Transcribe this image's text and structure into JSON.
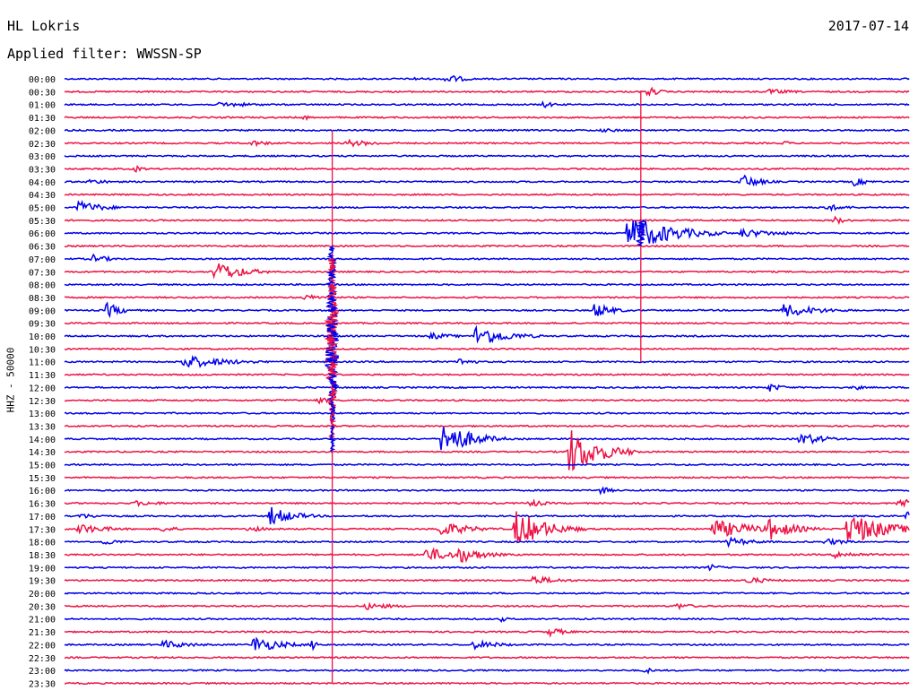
{
  "header": {
    "station": "HL Lokris",
    "date": "2017-07-14",
    "filter": "Applied filter: WWSSN-SP"
  },
  "chart_data": {
    "type": "line",
    "title": "HL Lokris",
    "ylabel": "HHZ - 50000",
    "row_labels": [
      "00:00",
      "00:30",
      "01:00",
      "01:30",
      "02:00",
      "02:30",
      "03:00",
      "03:30",
      "04:00",
      "04:30",
      "05:00",
      "05:30",
      "06:00",
      "06:30",
      "07:00",
      "07:30",
      "08:00",
      "08:30",
      "09:00",
      "09:30",
      "10:00",
      "10:30",
      "11:00",
      "11:30",
      "12:00",
      "12:30",
      "13:00",
      "13:30",
      "14:00",
      "14:30",
      "15:00",
      "15:30",
      "16:00",
      "16:30",
      "17:00",
      "17:30",
      "18:00",
      "18:30",
      "19:00",
      "19:30",
      "20:00",
      "20:30",
      "21:00",
      "21:30",
      "22:00",
      "22:30",
      "23:00",
      "23:30"
    ],
    "minutes_per_row": 30,
    "colors": {
      "even": "#0000ee",
      "odd": "#ee1144"
    },
    "events": [
      {
        "row": 0,
        "minute": 13.5,
        "amp": 6,
        "dur": 0.6
      },
      {
        "row": 0,
        "minute": 12.3,
        "amp": 2,
        "dur": 0.8
      },
      {
        "row": 1,
        "minute": 20.7,
        "amp": 6,
        "dur": 0.4
      },
      {
        "row": 1,
        "minute": 25.0,
        "amp": 3,
        "dur": 1.0
      },
      {
        "row": 2,
        "minute": 5.5,
        "amp": 3,
        "dur": 1.5
      },
      {
        "row": 2,
        "minute": 17.0,
        "amp": 4,
        "dur": 0.4
      },
      {
        "row": 3,
        "minute": 8.5,
        "amp": 3,
        "dur": 0.3
      },
      {
        "row": 4,
        "minute": 19.0,
        "amp": 2,
        "dur": 1.5
      },
      {
        "row": 5,
        "minute": 6.6,
        "amp": 4,
        "dur": 0.6
      },
      {
        "row": 5,
        "minute": 10.0,
        "amp": 4,
        "dur": 1.2
      },
      {
        "row": 5,
        "minute": 25.5,
        "amp": 3,
        "dur": 0.3
      },
      {
        "row": 7,
        "minute": 2.5,
        "amp": 4,
        "dur": 0.3
      },
      {
        "row": 8,
        "minute": 24.0,
        "amp": 9,
        "dur": 0.6
      },
      {
        "row": 8,
        "minute": 28.0,
        "amp": 5,
        "dur": 0.5
      },
      {
        "row": 8,
        "minute": 0.8,
        "amp": 3,
        "dur": 1.0
      },
      {
        "row": 10,
        "minute": 0.5,
        "amp": 8,
        "dur": 0.8
      },
      {
        "row": 10,
        "minute": 27.0,
        "amp": 4,
        "dur": 0.8
      },
      {
        "row": 11,
        "minute": 27.3,
        "amp": 5,
        "dur": 0.4
      },
      {
        "row": 12,
        "minute": 20.0,
        "amp": 22,
        "dur": 1.4
      },
      {
        "row": 12,
        "minute": 24.0,
        "amp": 5,
        "dur": 1.4
      },
      {
        "row": 14,
        "minute": 1.0,
        "amp": 5,
        "dur": 0.6
      },
      {
        "row": 15,
        "minute": 5.3,
        "amp": 13,
        "dur": 0.9
      },
      {
        "row": 17,
        "minute": 8.5,
        "amp": 3,
        "dur": 1.2
      },
      {
        "row": 18,
        "minute": 1.5,
        "amp": 9,
        "dur": 0.5
      },
      {
        "row": 18,
        "minute": 18.8,
        "amp": 9,
        "dur": 0.6
      },
      {
        "row": 18,
        "minute": 25.5,
        "amp": 8,
        "dur": 1.2
      },
      {
        "row": 20,
        "minute": 14.6,
        "amp": 13,
        "dur": 1.0
      },
      {
        "row": 20,
        "minute": 13.0,
        "amp": 4,
        "dur": 0.8
      },
      {
        "row": 22,
        "minute": 4.2,
        "amp": 8,
        "dur": 1.5
      },
      {
        "row": 22,
        "minute": 14.0,
        "amp": 5,
        "dur": 0.5
      },
      {
        "row": 24,
        "minute": 25.0,
        "amp": 5,
        "dur": 0.5
      },
      {
        "row": 24,
        "minute": 28.0,
        "amp": 4,
        "dur": 0.3
      },
      {
        "row": 25,
        "minute": 9.0,
        "amp": 5,
        "dur": 0.3
      },
      {
        "row": 28,
        "minute": 13.4,
        "amp": 22,
        "dur": 0.9
      },
      {
        "row": 28,
        "minute": 26.1,
        "amp": 8,
        "dur": 0.8
      },
      {
        "row": 29,
        "minute": 17.9,
        "amp": 28,
        "dur": 1.0
      },
      {
        "row": 32,
        "minute": 19.0,
        "amp": 5,
        "dur": 0.4
      },
      {
        "row": 33,
        "minute": 16.5,
        "amp": 5,
        "dur": 0.5
      },
      {
        "row": 33,
        "minute": 29.6,
        "amp": 7,
        "dur": 0.5
      },
      {
        "row": 33,
        "minute": 2.5,
        "amp": 3,
        "dur": 1.2
      },
      {
        "row": 34,
        "minute": 7.3,
        "amp": 11,
        "dur": 0.8
      },
      {
        "row": 34,
        "minute": 0.5,
        "amp": 3,
        "dur": 1.0
      },
      {
        "row": 34,
        "minute": 29.9,
        "amp": 6,
        "dur": 0.4
      },
      {
        "row": 35,
        "minute": 0.5,
        "amp": 6,
        "dur": 1.0
      },
      {
        "row": 35,
        "minute": 3.4,
        "amp": 4,
        "dur": 0.6
      },
      {
        "row": 35,
        "minute": 6.5,
        "amp": 4,
        "dur": 0.6
      },
      {
        "row": 35,
        "minute": 13.3,
        "amp": 9,
        "dur": 1.0
      },
      {
        "row": 35,
        "minute": 16.0,
        "amp": 22,
        "dur": 1.0
      },
      {
        "row": 35,
        "minute": 23.0,
        "amp": 11,
        "dur": 1.4
      },
      {
        "row": 35,
        "minute": 25.0,
        "amp": 13,
        "dur": 0.8
      },
      {
        "row": 35,
        "minute": 27.8,
        "amp": 20,
        "dur": 1.2
      },
      {
        "row": 36,
        "minute": 1.4,
        "amp": 4,
        "dur": 0.6
      },
      {
        "row": 36,
        "minute": 23.5,
        "amp": 5,
        "dur": 1.0
      },
      {
        "row": 36,
        "minute": 27.0,
        "amp": 4,
        "dur": 0.8
      },
      {
        "row": 37,
        "minute": 12.8,
        "amp": 8,
        "dur": 1.2
      },
      {
        "row": 37,
        "minute": 14.0,
        "amp": 10,
        "dur": 0.8
      },
      {
        "row": 37,
        "minute": 27.3,
        "amp": 4,
        "dur": 1.2
      },
      {
        "row": 38,
        "minute": 22.9,
        "amp": 4,
        "dur": 0.4
      },
      {
        "row": 39,
        "minute": 16.6,
        "amp": 5,
        "dur": 1.0
      },
      {
        "row": 39,
        "minute": 24.2,
        "amp": 4,
        "dur": 0.9
      },
      {
        "row": 41,
        "minute": 10.7,
        "amp": 4,
        "dur": 1.0
      },
      {
        "row": 41,
        "minute": 21.7,
        "amp": 4,
        "dur": 0.6
      },
      {
        "row": 42,
        "minute": 15.5,
        "amp": 3,
        "dur": 0.3
      },
      {
        "row": 43,
        "minute": 17.2,
        "amp": 5,
        "dur": 0.6
      },
      {
        "row": 44,
        "minute": 3.5,
        "amp": 5,
        "dur": 1.0
      },
      {
        "row": 44,
        "minute": 6.7,
        "amp": 10,
        "dur": 0.9
      },
      {
        "row": 44,
        "minute": 8.8,
        "amp": 7,
        "dur": 0.2
      },
      {
        "row": 44,
        "minute": 14.5,
        "amp": 5,
        "dur": 1.0
      },
      {
        "row": 46,
        "minute": 20.6,
        "amp": 4,
        "dur": 0.3
      }
    ],
    "long_events": [
      {
        "start_row": 1,
        "end_row": 22,
        "minute": 20.45,
        "amp": 2,
        "peaks": [
          {
            "row": 12,
            "amp": 22
          }
        ]
      },
      {
        "start_row": 4,
        "end_row": 48,
        "minute": 9.5,
        "amp": 2,
        "peaks": [
          {
            "row": 14,
            "amp": 14
          },
          {
            "row": 15,
            "amp": 16
          },
          {
            "row": 16,
            "amp": 18
          },
          {
            "row": 17,
            "amp": 20
          },
          {
            "row": 18,
            "amp": 24
          },
          {
            "row": 19,
            "amp": 28
          },
          {
            "row": 20,
            "amp": 30
          },
          {
            "row": 21,
            "amp": 34
          },
          {
            "row": 22,
            "amp": 30
          },
          {
            "row": 23,
            "amp": 26
          },
          {
            "row": 24,
            "amp": 22
          },
          {
            "row": 25,
            "amp": 16
          },
          {
            "row": 26,
            "amp": 12
          },
          {
            "row": 27,
            "amp": 10
          },
          {
            "row": 28,
            "amp": 8
          }
        ]
      }
    ]
  }
}
